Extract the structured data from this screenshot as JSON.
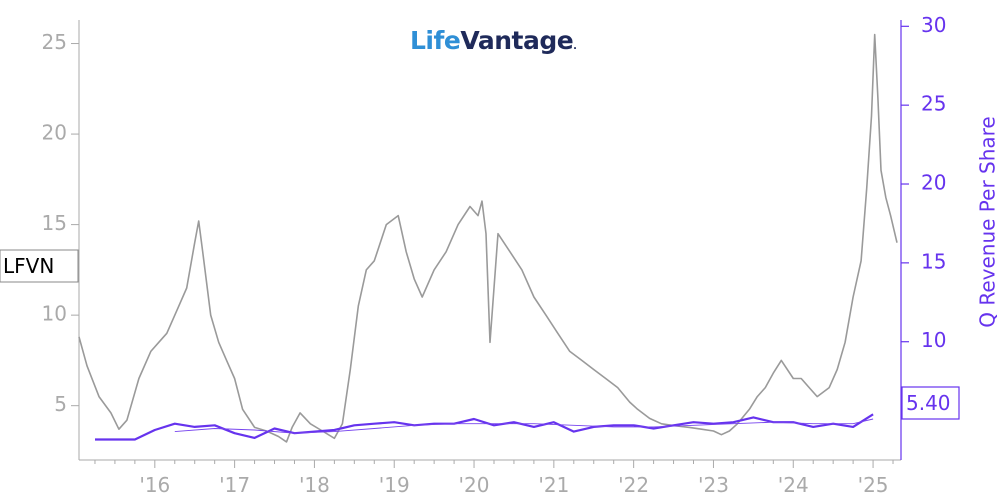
{
  "logo": {
    "part1": "Life",
    "part2": "Vantage",
    "mark": "."
  },
  "chart_data": {
    "type": "line",
    "ticker_label": "LFVN",
    "last_value_label": "5.40",
    "x_tick_labels": [
      "'16",
      "'17",
      "'18",
      "'19",
      "'20",
      "'21",
      "'22",
      "'23",
      "'24",
      "'25"
    ],
    "x_range": [
      2015.05,
      2025.35
    ],
    "y_left": {
      "ticks": [
        5,
        10,
        15,
        20,
        25
      ],
      "range": [
        2.0,
        26.3
      ],
      "label": ""
    },
    "y_right": {
      "ticks": [
        10,
        15,
        20,
        25,
        30
      ],
      "range": [
        2.5,
        30.4
      ],
      "label": "Q Revenue Per Share"
    },
    "grid": false,
    "colors": {
      "price": "#9a9a9a",
      "revenue": "#6633ee",
      "trend": "#7744ee",
      "axis_left": "#aaaaaa",
      "axis_right": "#6633ee"
    },
    "series": [
      {
        "axis": "left",
        "x": [
          2015.05,
          2015.15,
          2015.3,
          2015.45,
          2015.55,
          2015.65,
          2015.8,
          2015.95,
          2016.05,
          2016.15,
          2016.3,
          2016.4,
          2016.5,
          2016.55,
          2016.6,
          2016.7,
          2016.8,
          2016.9,
          2017.0,
          2017.1,
          2017.25,
          2017.4,
          2017.55,
          2017.65,
          2017.72,
          2017.82,
          2017.95,
          2018.1,
          2018.25,
          2018.35,
          2018.45,
          2018.55,
          2018.65,
          2018.75,
          2018.9,
          2019.05,
          2019.15,
          2019.25,
          2019.35,
          2019.5,
          2019.65,
          2019.8,
          2019.95,
          2020.05,
          2020.1,
          2020.15,
          2020.2,
          2020.3,
          2020.45,
          2020.6,
          2020.75,
          2020.9,
          2021.05,
          2021.2,
          2021.35,
          2021.5,
          2021.65,
          2021.8,
          2021.95,
          2022.05,
          2022.2,
          2022.35,
          2022.5,
          2022.7,
          2022.85,
          2023.0,
          2023.1,
          2023.2,
          2023.3,
          2023.45,
          2023.55,
          2023.65,
          2023.75,
          2023.85,
          2024.0,
          2024.1,
          2024.2,
          2024.3,
          2024.45,
          2024.55,
          2024.65,
          2024.75,
          2024.85,
          2024.92,
          2024.98,
          2025.02,
          2025.06,
          2025.1,
          2025.16,
          2025.22,
          2025.3
        ],
        "values": [
          8.8,
          7.2,
          5.5,
          4.6,
          3.7,
          4.2,
          6.5,
          8.0,
          8.5,
          9.0,
          10.5,
          11.5,
          14.0,
          15.2,
          13.5,
          10.0,
          8.5,
          7.5,
          6.5,
          4.8,
          3.8,
          3.6,
          3.3,
          3.0,
          3.8,
          4.6,
          4.0,
          3.6,
          3.2,
          4.0,
          7.0,
          10.5,
          12.5,
          13.0,
          15.0,
          15.5,
          13.5,
          12.0,
          11.0,
          12.5,
          13.5,
          15.0,
          16.0,
          15.5,
          16.3,
          14.5,
          8.5,
          14.5,
          13.5,
          12.5,
          11.0,
          10.0,
          9.0,
          8.0,
          7.5,
          7.0,
          6.5,
          6.0,
          5.2,
          4.8,
          4.3,
          4.0,
          3.9,
          3.8,
          3.7,
          3.6,
          3.4,
          3.6,
          4.0,
          4.8,
          5.5,
          6.0,
          6.8,
          7.5,
          6.5,
          6.5,
          6.0,
          5.5,
          6.0,
          7.0,
          8.5,
          11.0,
          13.0,
          17.0,
          21.0,
          25.5,
          22.0,
          18.0,
          16.5,
          15.5,
          14.0
        ]
      },
      {
        "axis": "right",
        "x": [
          2015.25,
          2015.75,
          2016.0,
          2016.25,
          2016.5,
          2016.75,
          2017.0,
          2017.25,
          2017.5,
          2017.75,
          2018.0,
          2018.25,
          2018.5,
          2018.75,
          2019.0,
          2019.25,
          2019.5,
          2019.75,
          2020.0,
          2020.25,
          2020.5,
          2020.75,
          2021.0,
          2021.25,
          2021.5,
          2021.75,
          2022.0,
          2022.25,
          2022.5,
          2022.75,
          2023.0,
          2023.25,
          2023.5,
          2023.75,
          2024.0,
          2024.25,
          2024.5,
          2024.75,
          2025.0
        ],
        "values": [
          3.8,
          3.8,
          4.4,
          4.8,
          4.6,
          4.7,
          4.2,
          3.9,
          4.5,
          4.2,
          4.3,
          4.4,
          4.7,
          4.8,
          4.9,
          4.7,
          4.8,
          4.8,
          5.1,
          4.7,
          4.9,
          4.6,
          4.9,
          4.3,
          4.6,
          4.7,
          4.7,
          4.5,
          4.7,
          4.9,
          4.8,
          4.9,
          5.2,
          4.9,
          4.9,
          4.6,
          4.8,
          4.6,
          5.4
        ]
      },
      {
        "axis": "right",
        "style": "trend",
        "x": [
          2016.25,
          2016.75,
          2017.25,
          2017.75,
          2018.25,
          2018.75,
          2019.25,
          2019.75,
          2020.25,
          2020.75,
          2021.25,
          2021.75,
          2022.25,
          2022.75,
          2023.25,
          2023.75,
          2024.25,
          2024.75,
          2025.0
        ],
        "values": [
          4.3,
          4.5,
          4.4,
          4.2,
          4.3,
          4.5,
          4.7,
          4.8,
          4.8,
          4.8,
          4.7,
          4.6,
          4.6,
          4.7,
          4.8,
          4.9,
          4.8,
          4.8,
          5.1
        ]
      }
    ]
  }
}
